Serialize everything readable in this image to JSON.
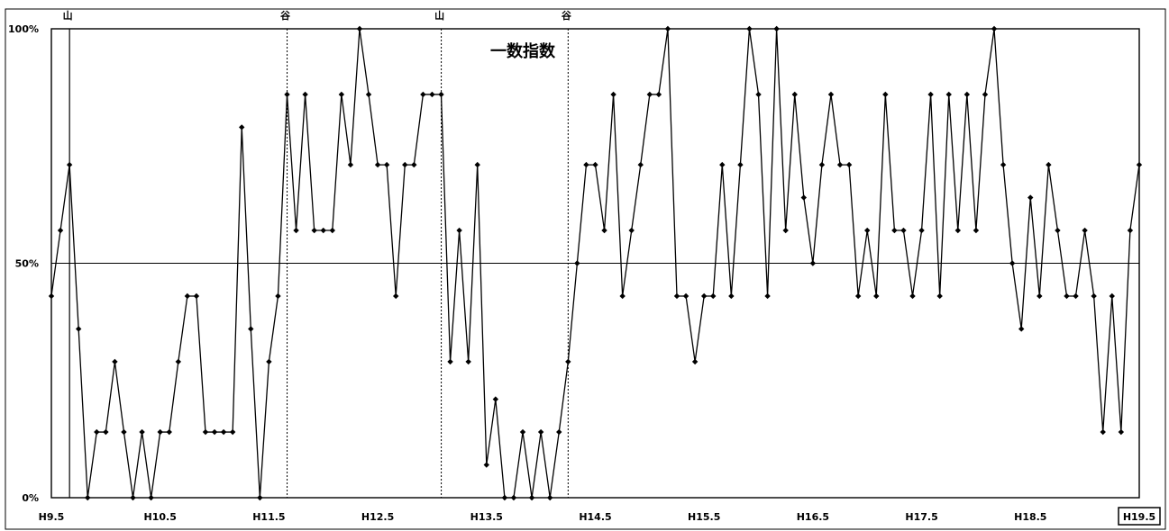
{
  "chart_data": {
    "type": "line",
    "title": "一数指数",
    "xlabel": "",
    "ylabel": "",
    "ylim": [
      0,
      100
    ],
    "grid": false,
    "reference_line": 50,
    "yticks": [
      {
        "value": 0,
        "label": "0%"
      },
      {
        "value": 50,
        "label": "50%"
      },
      {
        "value": 100,
        "label": "100%"
      }
    ],
    "x_range": [
      1997.333,
      2007.333
    ],
    "xticks": [
      {
        "value": 1997.333,
        "label": "H9.5"
      },
      {
        "value": 1998.333,
        "label": "H10.5"
      },
      {
        "value": 1999.333,
        "label": "H11.5"
      },
      {
        "value": 2000.333,
        "label": "H12.5"
      },
      {
        "value": 2001.333,
        "label": "H13.5"
      },
      {
        "value": 2002.333,
        "label": "H14.5"
      },
      {
        "value": 2003.333,
        "label": "H15.5"
      },
      {
        "value": 2004.333,
        "label": "H16.5"
      },
      {
        "value": 2005.333,
        "label": "H17.5"
      },
      {
        "value": 2006.333,
        "label": "H18.5"
      },
      {
        "value": 2007.333,
        "label": "H19.5",
        "boxed": true
      }
    ],
    "phases": [
      {
        "label": "山",
        "x": 1997.5,
        "style": "solid"
      },
      {
        "label": "谷",
        "x": 1999.5,
        "style": "dotted"
      },
      {
        "label": "山",
        "x": 2000.917,
        "style": "dotted"
      },
      {
        "label": "谷",
        "x": 2002.083,
        "style": "dotted"
      }
    ],
    "series": [
      {
        "x_start": 1997.333,
        "x_step": 0.08333,
        "values": [
          43,
          57,
          71,
          36,
          0,
          14,
          14,
          29,
          14,
          0,
          14,
          0,
          14,
          14,
          29,
          43,
          43,
          14,
          14,
          14,
          14,
          79,
          36,
          0,
          29,
          43,
          86,
          57,
          86,
          57,
          57,
          57,
          86,
          71,
          100,
          86,
          71,
          71,
          43,
          71,
          71,
          86,
          86,
          86,
          29,
          57,
          29,
          71,
          7,
          21,
          0,
          0,
          14,
          0,
          14,
          0,
          14,
          29,
          50,
          71,
          71,
          57,
          86,
          43,
          57,
          71,
          86,
          86,
          100,
          43,
          43,
          29,
          43,
          43,
          71,
          43,
          71,
          100,
          86,
          43,
          100,
          57,
          86,
          64,
          50,
          71,
          86,
          71,
          71,
          43,
          57,
          43,
          86,
          57,
          57,
          43,
          57,
          86,
          43,
          86,
          57,
          86,
          57,
          86,
          100,
          71,
          50,
          36,
          64,
          43,
          71,
          57,
          43,
          43,
          57,
          43,
          14,
          43,
          14,
          57,
          71
        ]
      }
    ]
  }
}
